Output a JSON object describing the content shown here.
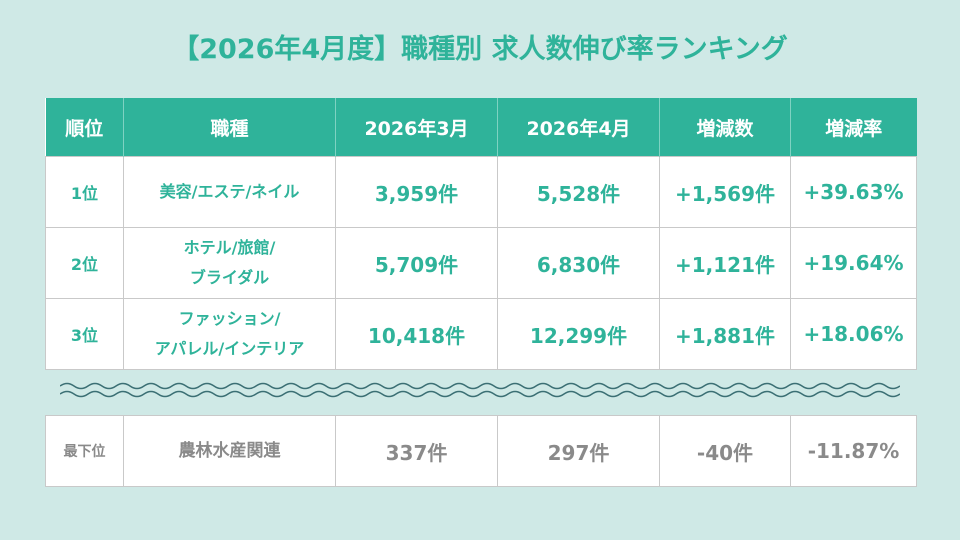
{
  "title": "【2026年4月度】職種別 求人数伸び率ランキング",
  "headers": [
    "順位",
    "職種",
    "2026年3月",
    "2026年4月",
    "増減数",
    "増減率"
  ],
  "rows": [
    {
      "rank": "1位",
      "job_line1": "美容/エステ/ネイル",
      "job_line2": "",
      "mar": "3,959件",
      "apr": "5,528件",
      "diff": "+1,569件",
      "rate": "+39.63%"
    },
    {
      "rank": "2位",
      "job_line1": "ホテル/旅館/",
      "job_line2": "ブライダル",
      "mar": "5,709件",
      "apr": "6,830件",
      "diff": "+1,121件",
      "rate": "+19.64%"
    },
    {
      "rank": "3位",
      "job_line1": "ファッション/",
      "job_line2": "アパレル/インテリア",
      "mar": "10,418件",
      "apr": "12,299件",
      "diff": "+1,881件",
      "rate": "+18.06%"
    }
  ],
  "last": {
    "rank": "最下位",
    "job": "農林水産関連",
    "mar": "337件",
    "apr": "297件",
    "diff": "-40件",
    "rate": "-11.87%"
  },
  "colors": {
    "accent": "#2fb39a",
    "background": "#cfe9e6",
    "muted": "#8a8a8a"
  }
}
